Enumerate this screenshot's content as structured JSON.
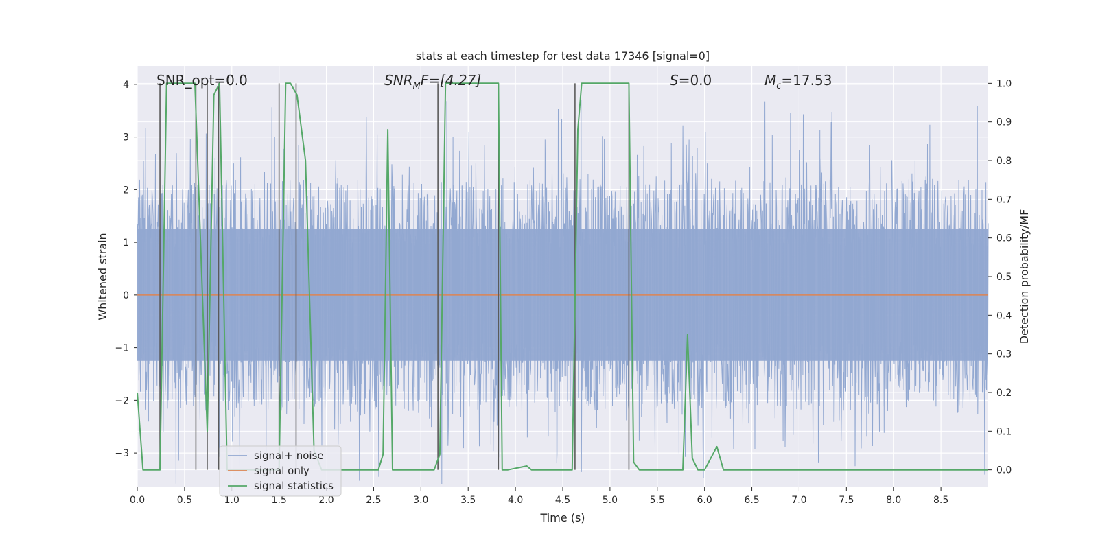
{
  "chart_data": {
    "type": "line",
    "title": "stats at each timestep for test data 17346 [signal=0]",
    "xlabel": "Time (s)",
    "ylabel": "Whitened strain",
    "y2label": "Detection probability/MF",
    "xlim": [
      0.0,
      9.0
    ],
    "ylim": [
      -3.65,
      4.35
    ],
    "y2lim": [
      -0.045,
      1.045
    ],
    "x_ticks": [
      "0.0",
      "0.5",
      "1.0",
      "1.5",
      "2.0",
      "2.5",
      "3.0",
      "3.5",
      "4.0",
      "4.5",
      "5.0",
      "5.5",
      "6.0",
      "6.5",
      "7.0",
      "7.5",
      "8.0",
      "8.5"
    ],
    "y_ticks": [
      "−3",
      "−2",
      "−1",
      "0",
      "1",
      "2",
      "3",
      "4"
    ],
    "y2_ticks": [
      "0.0",
      "0.1",
      "0.2",
      "0.3",
      "0.4",
      "0.5",
      "0.6",
      "0.7",
      "0.8",
      "0.9",
      "1.0"
    ],
    "grid": true,
    "legend_position": "bottom-left",
    "annotations": {
      "snr_opt": "SNR_opt=0.0",
      "snr_mf_base": "SNR",
      "snr_mf_sub": "M",
      "snr_mf_rest": "F=[4.27]",
      "s_base": "S",
      "s_rest": "=0.0",
      "mc_base": "M",
      "mc_sub": "c",
      "mc_rest": "=17.53"
    },
    "series": [
      {
        "name": "signal+ noise",
        "color": "#92a8d1",
        "kind": "noise",
        "amplitude_typical": [
          -2.2,
          2.2
        ],
        "amplitude_extreme": [
          -3.6,
          3.8
        ]
      },
      {
        "name": "signal only",
        "color": "#dd8452",
        "x": [
          0.0,
          9.0
        ],
        "y": [
          0.0,
          0.0
        ]
      },
      {
        "name": "signal statistics",
        "color": "#55a868",
        "axis": "right",
        "points": [
          [
            0.0,
            0.2
          ],
          [
            0.06,
            0.0
          ],
          [
            0.24,
            0.0
          ],
          [
            0.31,
            1.0
          ],
          [
            0.61,
            1.0
          ],
          [
            0.74,
            0.1
          ],
          [
            0.81,
            0.97
          ],
          [
            0.87,
            1.0
          ],
          [
            0.95,
            0.0
          ],
          [
            1.5,
            0.0
          ],
          [
            1.57,
            1.0
          ],
          [
            1.62,
            1.0
          ],
          [
            1.69,
            0.97
          ],
          [
            1.78,
            0.8
          ],
          [
            1.87,
            0.05
          ],
          [
            1.95,
            0.0
          ],
          [
            2.55,
            0.0
          ],
          [
            2.6,
            0.04
          ],
          [
            2.65,
            0.88
          ],
          [
            2.7,
            0.0
          ],
          [
            3.14,
            0.0
          ],
          [
            3.2,
            0.04
          ],
          [
            3.26,
            1.0
          ],
          [
            3.82,
            1.0
          ],
          [
            3.86,
            0.0
          ],
          [
            3.92,
            0.0
          ],
          [
            4.12,
            0.01
          ],
          [
            4.17,
            0.0
          ],
          [
            4.6,
            0.0
          ],
          [
            4.66,
            0.88
          ],
          [
            4.7,
            1.0
          ],
          [
            5.2,
            1.0
          ],
          [
            5.25,
            0.02
          ],
          [
            5.31,
            0.0
          ],
          [
            5.77,
            0.0
          ],
          [
            5.82,
            0.35
          ],
          [
            5.87,
            0.03
          ],
          [
            5.93,
            0.0
          ],
          [
            6.0,
            0.0
          ],
          [
            6.13,
            0.06
          ],
          [
            6.2,
            0.0
          ],
          [
            9.0,
            0.0
          ]
        ]
      }
    ],
    "vlines": {
      "color": "#5a5a5a",
      "x": [
        0.24,
        0.62,
        0.74,
        0.86,
        1.5,
        1.68,
        3.18,
        3.82,
        4.63,
        5.2
      ]
    }
  }
}
